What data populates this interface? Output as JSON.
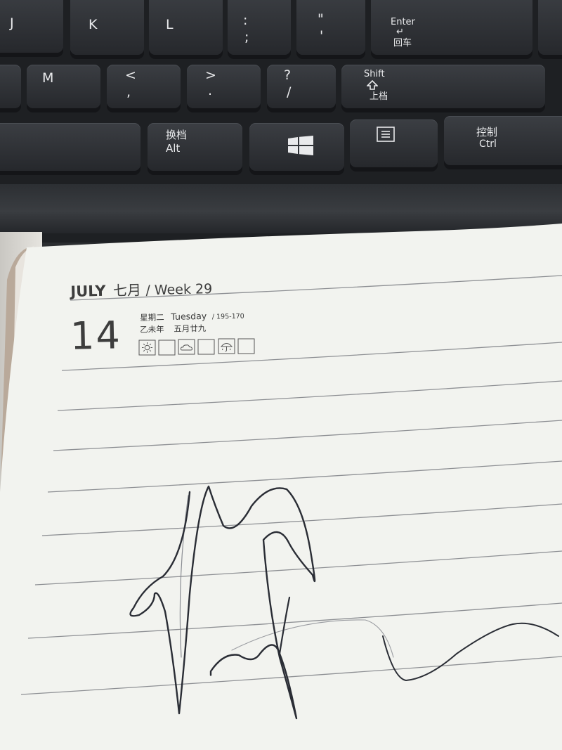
{
  "keyboard": {
    "keys": {
      "j": "J",
      "k": "K",
      "l": "L",
      "colon_top": ":",
      "colon_bottom": ";",
      "quote_top": "\"",
      "quote_bottom": "'",
      "enter_en": "Enter",
      "enter_arrow": "↵",
      "enter_cn": "回车",
      "m": "M",
      "lt_top": "<",
      "lt_bottom": ",",
      "gt_top": ">",
      "gt_bottom": ".",
      "q_top": "?",
      "q_bottom": "/",
      "shift_en": "Shift",
      "shift_cn": "上档",
      "alt_cn": "换档",
      "alt_en": "Alt",
      "ctrl_cn": "控制",
      "ctrl_en": "Ctrl"
    },
    "icons": [
      "windows-logo-icon",
      "menu-key-icon",
      "shift-arrow-icon"
    ]
  },
  "planner": {
    "month_en": "JULY",
    "month_cn": "七月",
    "week": "/ Week 29",
    "day_number": "14",
    "weekday_cn": "星期二",
    "weekday_en": "Tuesday",
    "day_count": "/  195-170",
    "lunar_year": "乙未年",
    "lunar_date": "五月廿九",
    "weather_icons": [
      "sun-icon",
      "empty-box",
      "cloud-icon",
      "empty-box",
      "rain-umbrella-icon",
      "empty-box"
    ]
  },
  "drawing": {
    "subject": "pen-sketch-scribble"
  },
  "colors": {
    "paper": "#f2f3ef",
    "ink": "#2a2d35",
    "keyboard": "#2b2d30"
  }
}
